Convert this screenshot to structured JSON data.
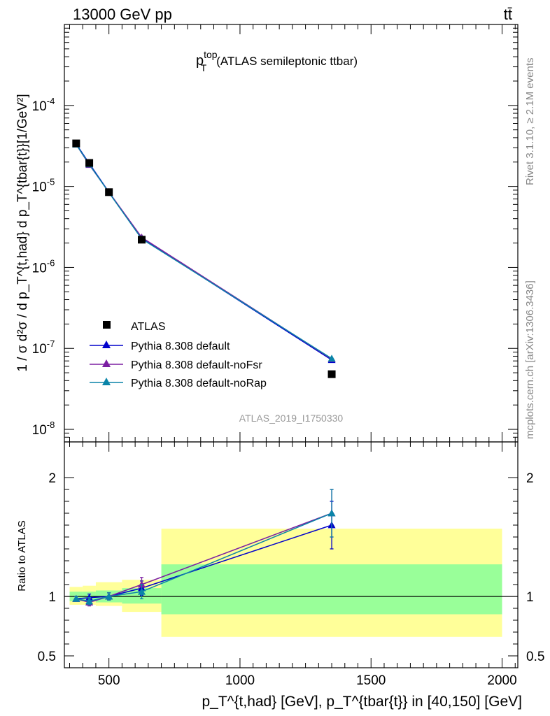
{
  "header": {
    "left_label": "13000 GeV pp",
    "right_label": "tt̄"
  },
  "side": {
    "rivet": "Rivet 3.1.10, ≥ 2.1M events",
    "mcplots": "mcplots.cern.ch [arXiv:1306.3436]"
  },
  "main": {
    "title_base": "p",
    "title_sup": "top",
    "title_sub": "T",
    "title_rest": "(ATLAS semileptonic ttbar)",
    "ylabel": "1 / σ d²σ / d p_T^{t,had} d p_T^{tbar{t}}[1/GeV²]",
    "watermark": "ATLAS_2019_I1750330"
  },
  "ratio": {
    "ylabel": "Ratio to ATLAS"
  },
  "xaxis": {
    "label": "p_T^{t,had} [GeV], p_T^{tbar{t}} in [40,150] [GeV]"
  },
  "legend": {
    "entries": [
      "ATLAS",
      "Pythia 8.308 default",
      "Pythia 8.308 default-noFsr",
      "Pythia 8.308 default-noRap"
    ]
  },
  "colors": {
    "data": "#000000",
    "default": "#0000cc",
    "noFsr": "#7b1fa2",
    "noRap": "#0a84a8",
    "band_inner": "#99ff99",
    "band_outer": "#ffff99"
  },
  "chart_data": {
    "type": "line",
    "x_scale": "linear",
    "main_y_scale": "log",
    "xlim": [
      330,
      2060
    ],
    "ylim": [
      7e-09,
      0.001
    ],
    "ratio_ylim": [
      0.4,
      2.3
    ],
    "x_ticks": [
      500,
      1000,
      1500,
      2000
    ],
    "ratio_ticks": [
      0.5,
      1,
      2
    ],
    "data": {
      "name": "ATLAS",
      "x": [
        375,
        425,
        500,
        625,
        1350
      ],
      "y": [
        3.4e-05,
        1.95e-05,
        8.5e-06,
        2.2e-06,
        4.8e-08
      ],
      "bin_edges": [
        350,
        400,
        450,
        550,
        700,
        2000
      ]
    },
    "series": [
      {
        "name": "Pythia 8.308 default",
        "key": "default",
        "x": [
          375,
          425,
          500,
          625,
          1350
        ],
        "y": [
          3.35e-05,
          1.92e-05,
          8.5e-06,
          2.3e-06,
          7.2e-08
        ],
        "ratio": [
          0.98,
          0.99,
          1.0,
          1.07,
          1.6
        ],
        "ratio_err": [
          0.02,
          0.03,
          0.03,
          0.06,
          0.2
        ]
      },
      {
        "name": "Pythia 8.308 default-noFsr",
        "key": "noFsr",
        "x": [
          375,
          425,
          500,
          625,
          1350
        ],
        "y": [
          3.3e-05,
          1.85e-05,
          8.5e-06,
          2.35e-06,
          7.4e-08
        ],
        "ratio": [
          0.98,
          0.95,
          1.0,
          1.1,
          1.7
        ],
        "ratio_err": [
          0.02,
          0.03,
          0.03,
          0.06,
          0.2
        ]
      },
      {
        "name": "Pythia 8.308 default-noRap",
        "key": "noRap",
        "x": [
          375,
          425,
          500,
          625,
          1350
        ],
        "y": [
          3.3e-05,
          1.88e-05,
          8.4e-06,
          2.25e-06,
          7.5e-08
        ],
        "ratio": [
          0.98,
          0.96,
          1.0,
          1.04,
          1.7
        ],
        "ratio_err": [
          0.02,
          0.03,
          0.03,
          0.06,
          0.2
        ]
      }
    ],
    "ratio_bands": [
      {
        "x0": 350,
        "x1": 400,
        "inner": [
          0.96,
          1.04
        ],
        "outer": [
          0.93,
          1.08
        ]
      },
      {
        "x0": 400,
        "x1": 450,
        "inner": [
          0.96,
          1.04
        ],
        "outer": [
          0.93,
          1.09
        ]
      },
      {
        "x0": 450,
        "x1": 550,
        "inner": [
          0.95,
          1.05
        ],
        "outer": [
          0.92,
          1.12
        ]
      },
      {
        "x0": 550,
        "x1": 700,
        "inner": [
          0.94,
          1.07
        ],
        "outer": [
          0.87,
          1.14
        ]
      },
      {
        "x0": 700,
        "x1": 2000,
        "inner": [
          0.85,
          1.27
        ],
        "outer": [
          0.66,
          1.57
        ]
      }
    ]
  }
}
